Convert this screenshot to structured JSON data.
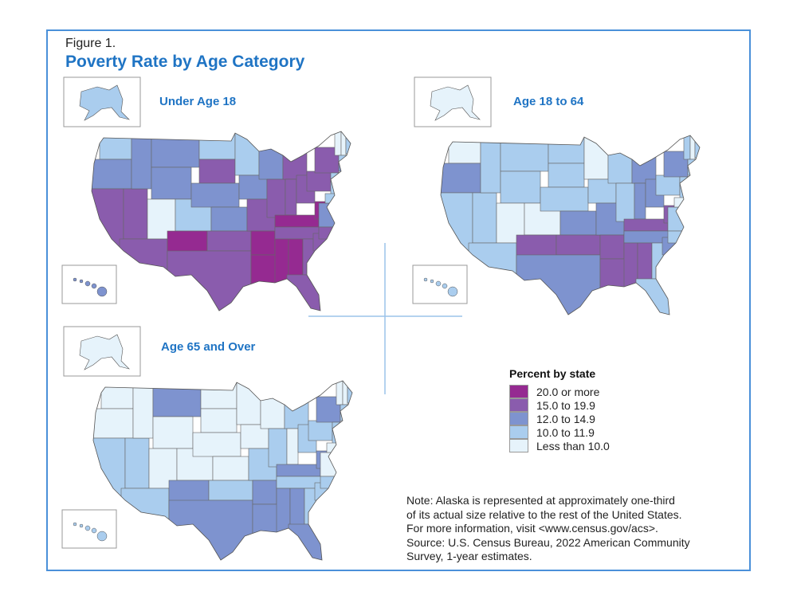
{
  "figure_label": "Figure 1.",
  "title": "Poverty Rate by Age Category",
  "legend": {
    "title": "Percent by state",
    "items": [
      {
        "label": "20.0 or more",
        "color": "#952a91"
      },
      {
        "label": "15.0 to 19.9",
        "color": "#8a5cad"
      },
      {
        "label": "12.0 to 14.9",
        "color": "#7e93cf"
      },
      {
        "label": "10.0 to 11.9",
        "color": "#aacdee"
      },
      {
        "label": "Less than 10.0",
        "color": "#e6f3fb"
      }
    ]
  },
  "maps": [
    {
      "title": "Under Age 18",
      "states": {
        "WA": 3,
        "OR": 2,
        "CA": 1,
        "NV": 1,
        "ID": 2,
        "MT": 2,
        "WY": 2,
        "UT": 4,
        "CO": 3,
        "AZ": 1,
        "NM": 0,
        "ND": 3,
        "SD": 1,
        "NE": 2,
        "KS": 2,
        "OK": 1,
        "TX": 1,
        "MN": 3,
        "IA": 2,
        "MO": 1,
        "AR": 0,
        "LA": 0,
        "WI": 2,
        "IL": 1,
        "MI": 1,
        "IN": 1,
        "OH": 1,
        "KY": 0,
        "TN": 1,
        "MS": 0,
        "AL": 0,
        "GA": 1,
        "FL": 1,
        "SC": 1,
        "WV": 0,
        "VA": 2,
        "NC": 1,
        "PA": 1,
        "NY": 1,
        "NJ": 3,
        "MD": 3,
        "VT": 4,
        "NH": 4,
        "ME": 3,
        "MA": 3,
        "CT": 2
      }
    },
    {
      "title": "Age 18 to 64",
      "states": {
        "WA": 4,
        "OR": 2,
        "CA": 3,
        "NV": 3,
        "ID": 3,
        "MT": 3,
        "WY": 3,
        "UT": 4,
        "CO": 4,
        "AZ": 3,
        "NM": 1,
        "ND": 3,
        "SD": 3,
        "NE": 3,
        "KS": 2,
        "OK": 1,
        "TX": 2,
        "MN": 4,
        "IA": 3,
        "MO": 2,
        "AR": 1,
        "LA": 1,
        "WI": 3,
        "IL": 3,
        "MI": 2,
        "IN": 2,
        "OH": 2,
        "KY": 1,
        "TN": 2,
        "MS": 1,
        "AL": 1,
        "GA": 3,
        "FL": 3,
        "SC": 2,
        "WV": 1,
        "VA": 3,
        "NC": 3,
        "PA": 3,
        "NY": 2,
        "NJ": 3,
        "MD": 4,
        "VT": 3,
        "NH": 4,
        "ME": 3,
        "MA": 3,
        "CT": 3
      }
    },
    {
      "title": "Age 65 and Over",
      "states": {
        "WA": 4,
        "OR": 4,
        "CA": 3,
        "NV": 3,
        "ID": 4,
        "MT": 2,
        "WY": 4,
        "UT": 4,
        "CO": 4,
        "AZ": 3,
        "NM": 2,
        "ND": 4,
        "SD": 4,
        "NE": 4,
        "KS": 4,
        "OK": 3,
        "TX": 2,
        "MN": 4,
        "IA": 4,
        "MO": 3,
        "AR": 2,
        "LA": 2,
        "WI": 4,
        "IL": 3,
        "MI": 3,
        "IN": 4,
        "OH": 3,
        "KY": 2,
        "TN": 3,
        "MS": 2,
        "AL": 2,
        "GA": 3,
        "FL": 2,
        "SC": 3,
        "WV": 2,
        "VA": 4,
        "NC": 3,
        "PA": 3,
        "NY": 2,
        "NJ": 3,
        "MD": 4,
        "VT": 4,
        "NH": 4,
        "ME": 3,
        "MA": 3,
        "CT": 3
      }
    }
  ],
  "note": [
    "Note: Alaska is represented at approximately one-third",
    "of its actual size relative to the rest of the United States.",
    "For more information, visit <www.census.gov/acs>.",
    "Source: U.S. Census Bureau, 2022 American Community",
    "Survey, 1-year estimates."
  ]
}
